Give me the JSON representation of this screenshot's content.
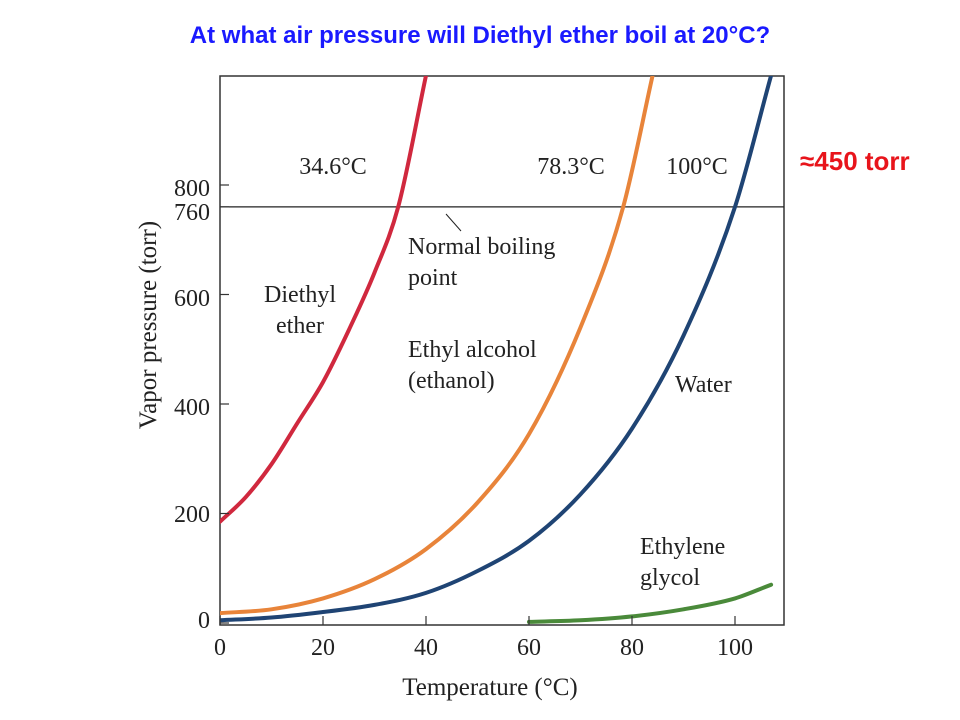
{
  "slide": {
    "question": "At what air pressure will Diethyl ether boil at 20°C?",
    "answer": "≈450 torr"
  },
  "chart_data": {
    "type": "line",
    "title": "",
    "xlabel": "Temperature (°C)",
    "ylabel": "Vapor pressure (torr)",
    "xlim": [
      0,
      107
    ],
    "ylim": [
      0,
      1000
    ],
    "x_ticks": [
      0,
      20,
      40,
      60,
      80,
      100
    ],
    "y_ticks": [
      0,
      200,
      400,
      600,
      760,
      800
    ],
    "grid": false,
    "series": [
      {
        "name": "Diethyl ether",
        "color": "#d0283e",
        "x": [
          0,
          5,
          10,
          15,
          20,
          25,
          30,
          34.6,
          40
        ],
        "y": [
          185,
          230,
          290,
          365,
          440,
          535,
          640,
          760,
          1000
        ]
      },
      {
        "name": "Ethyl alcohol (ethanol)",
        "color": "#e8843a",
        "x": [
          0,
          10,
          20,
          30,
          40,
          50,
          60,
          70,
          78.3,
          84
        ],
        "y": [
          18,
          25,
          45,
          80,
          135,
          220,
          345,
          540,
          760,
          1000
        ]
      },
      {
        "name": "Water",
        "color": "#1f4474",
        "x": [
          0,
          10,
          20,
          30,
          40,
          50,
          60,
          70,
          80,
          90,
          100,
          107
        ],
        "y": [
          5,
          10,
          20,
          33,
          55,
          95,
          150,
          235,
          355,
          525,
          760,
          1000
        ]
      },
      {
        "name": "Ethylene glycol",
        "color": "#4a8a3a",
        "x": [
          60,
          70,
          80,
          90,
          100,
          107
        ],
        "y": [
          2,
          5,
          12,
          25,
          45,
          70
        ]
      }
    ],
    "reference_line": {
      "y": 760,
      "label": "Normal boiling point"
    },
    "boiling_point_labels": [
      "34.6°C",
      "78.3°C",
      "100°C"
    ],
    "series_labels": {
      "diethyl_ether": [
        "Diethyl",
        "ether"
      ],
      "ethanol": [
        "Ethyl alcohol",
        "(ethanol)"
      ],
      "water": [
        "Water"
      ],
      "ethylene_glycol": [
        "Ethylene",
        "glycol"
      ],
      "normal_bp": [
        "Normal boiling",
        "point"
      ]
    }
  }
}
